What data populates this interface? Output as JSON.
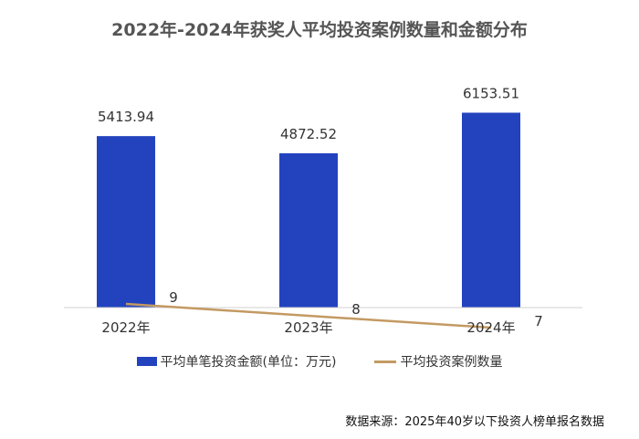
{
  "chart_data": {
    "type": "bar",
    "title": "2022年-2024年获奖人平均投资案例数量和金额分布",
    "categories": [
      "2022年",
      "2023年",
      "2024年"
    ],
    "series": [
      {
        "name": "平均单笔投资金额(单位：万元)",
        "type": "bar",
        "values": [
          5413.94,
          4872.52,
          6153.51
        ],
        "labels": [
          "5413.94",
          "4872.52",
          "6153.51"
        ]
      },
      {
        "name": "平均投资案例数量",
        "type": "line",
        "values": [
          9,
          8,
          7
        ],
        "labels": [
          "9",
          "8",
          "7"
        ]
      }
    ],
    "legend_position": "bottom",
    "grid": false
  },
  "colors": {
    "bar": "#2343be",
    "line": "#c39a63",
    "axis": "#d0d0d0"
  },
  "source_note": "数据来源：2025年40岁以下投资人榜单报名数据"
}
